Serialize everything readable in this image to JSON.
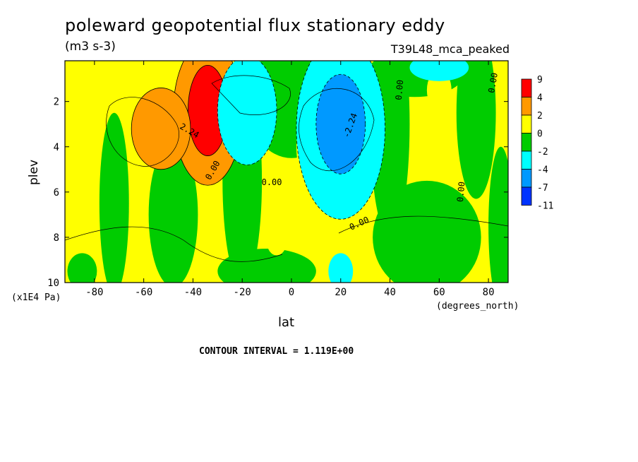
{
  "header": {
    "title": "poleward geopotential flux stationary eddy",
    "units": "(m3 s-3)",
    "run_label": "T39L48_mca_peaked"
  },
  "axes": {
    "ylabel": "plev",
    "y_multiplier": "(x1E4 Pa)",
    "xlabel": "lat",
    "x_units": "(degrees_north)"
  },
  "footer": {
    "contour_interval": "CONTOUR INTERVAL = 1.119E+00"
  },
  "chart_data": {
    "type": "heatmap",
    "title": "poleward geopotential flux stationary eddy",
    "x_label": "lat",
    "y_label": "plev",
    "x_range": [
      -92,
      88
    ],
    "y_range": [
      0.2,
      10
    ],
    "y_inverted": true,
    "x_ticks": [
      -80,
      -60,
      -40,
      -20,
      0,
      20,
      40,
      60,
      80
    ],
    "x_tick_labels": [
      "-80",
      "-60",
      "-40",
      "-20",
      "0",
      "20",
      "40",
      "60",
      "80"
    ],
    "y_ticks": [
      2,
      4,
      6,
      8,
      10
    ],
    "y_tick_labels": [
      "2",
      "4",
      "6",
      "8",
      "10"
    ],
    "contour_labels": [
      {
        "text": "2.24",
        "lat": -42,
        "plev": 3.4,
        "angle": 30
      },
      {
        "text": "0.00",
        "lat": -31,
        "plev": 5.1,
        "angle": -60
      },
      {
        "text": "0.00",
        "lat": -8,
        "plev": 5.7,
        "angle": 0
      },
      {
        "text": "-2.24",
        "lat": 25,
        "plev": 3.1,
        "angle": -70
      },
      {
        "text": "0.00",
        "lat": 28,
        "plev": 7.5,
        "angle": -25
      },
      {
        "text": "0.00",
        "lat": 45,
        "plev": 1.5,
        "angle": -85
      },
      {
        "text": "0.00",
        "lat": 70,
        "plev": 6.0,
        "angle": -85
      },
      {
        "text": "0.00",
        "lat": 83,
        "plev": 1.2,
        "angle": -80
      }
    ],
    "colorbar": {
      "levels": [
        "9",
        "4",
        "2",
        "0",
        "-2",
        "-4",
        "-7",
        "-11"
      ],
      "colors": [
        "#ff0000",
        "#ff9900",
        "#ffff00",
        "#00cc00",
        "#00ffff",
        "#0099ff",
        "#0033ff"
      ]
    },
    "field_regions": [
      {
        "lat": -34,
        "plev": 2.5,
        "w": 14,
        "h": 3.2,
        "level": 1,
        "desc": "positive lobe"
      },
      {
        "lat": -34,
        "plev": 2.4,
        "w": 8,
        "h": 2.0,
        "level": 0,
        "desc": "positive core"
      },
      {
        "lat": -53,
        "plev": 3.2,
        "w": 12,
        "h": 1.8,
        "level": 1,
        "desc": "positive lobe"
      },
      {
        "lat": 20,
        "plev": 3.2,
        "w": 18,
        "h": 4.0,
        "level": 4,
        "desc": "negative lobe"
      },
      {
        "lat": 20,
        "plev": 3.0,
        "w": 10,
        "h": 2.2,
        "level": 5,
        "desc": "negative core"
      },
      {
        "lat": -18,
        "plev": 2.4,
        "w": 12,
        "h": 2.4,
        "level": 4,
        "desc": "negative lobe"
      }
    ]
  }
}
